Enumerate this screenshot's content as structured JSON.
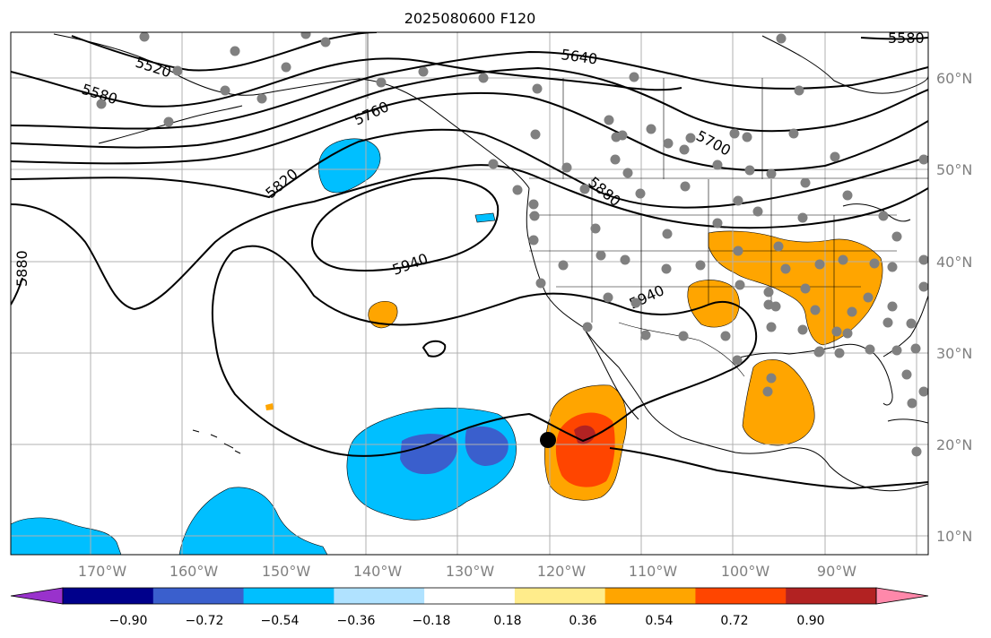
{
  "title": "2025080600 F120",
  "map": {
    "lon_labels": [
      "170°W",
      "160°W",
      "150°W",
      "140°W",
      "130°W",
      "120°W",
      "110°W",
      "100°W",
      "90°W"
    ],
    "lat_labels": [
      "60°N",
      "50°N",
      "40°N",
      "30°N",
      "20°N",
      "10°N"
    ],
    "contour_labels": [
      "5520",
      "5580",
      "5580",
      "5640",
      "5700",
      "5760",
      "5820",
      "5880",
      "5880",
      "5940",
      "5940"
    ],
    "gridlines": true,
    "colors": {
      "contour": "#000000",
      "coast": "#000000",
      "grid": "#b0b0b0",
      "station_dot": "#808080",
      "storm_marker": "#000000"
    }
  },
  "colorbar": {
    "colors": [
      "#9932cc",
      "#00008b",
      "#3a5fcd",
      "#00bfff",
      "#b0e2ff",
      "#ffffff",
      "#ffec8b",
      "#ffa500",
      "#ff4500",
      "#b22222",
      "#ff88aa"
    ],
    "tick_labels": [
      "−0.90",
      "−0.72",
      "−0.54",
      "−0.36",
      "−0.18",
      "0.18",
      "0.36",
      "0.54",
      "0.72",
      "0.90"
    ]
  }
}
